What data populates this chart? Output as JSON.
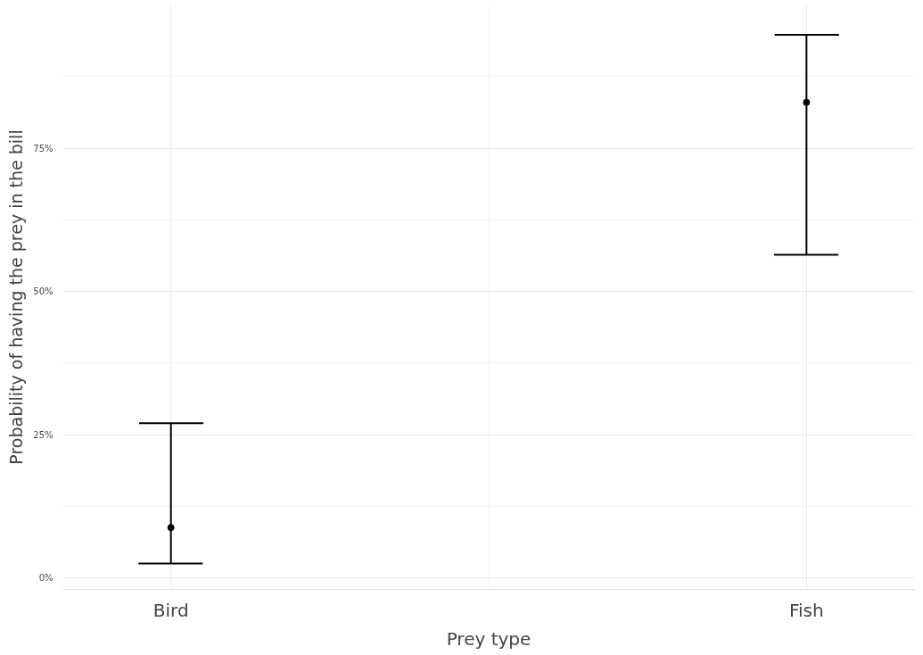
{
  "chart_data": {
    "type": "scatter",
    "xlabel": "Prey type",
    "ylabel": "Probability of having the prey in the bill",
    "categories": [
      "Bird",
      "Fish"
    ],
    "values": [
      8.8,
      83
    ],
    "errors": [
      [
        2.5,
        27
      ],
      [
        56.4,
        94.8
      ]
    ],
    "color": "#000000",
    "ylim": [
      -2,
      100
    ],
    "yticks": [
      {
        "value": 0,
        "label": "0%"
      },
      {
        "value": 25,
        "label": "25%"
      },
      {
        "value": 50,
        "label": "50%"
      },
      {
        "value": 75,
        "label": "75%"
      }
    ],
    "grid": true,
    "marker": "circle"
  }
}
